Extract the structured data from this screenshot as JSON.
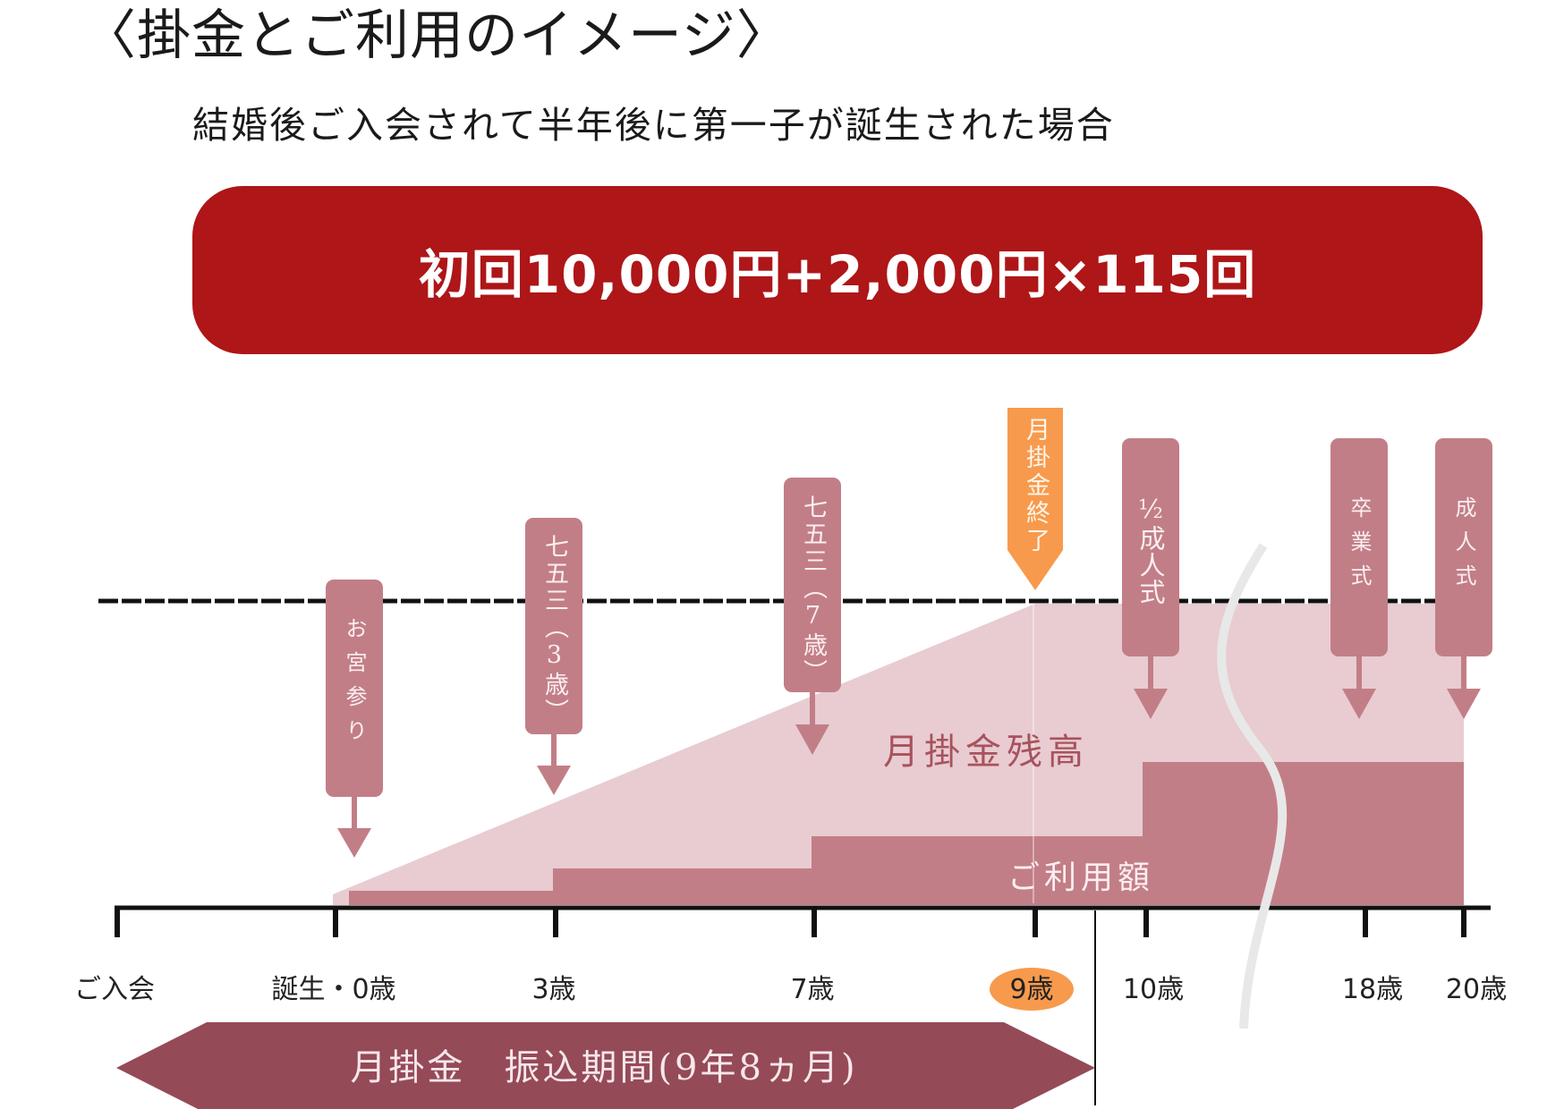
{
  "title": "〈掛金とご利用のイメージ〉",
  "subtitle": "結婚後ご入会されて半年後に第一子が誕生された場合",
  "banner": {
    "text": "初回10,000円+2,000円×115回"
  },
  "colors": {
    "banner": "#ae1618",
    "balance_area": "#e8ccd1",
    "usage_area": "#c27e87",
    "event_tag": "#c27e87",
    "end_tag": "#f79a4d",
    "period_arrow": "#954a58",
    "label_rose": "#a8525e"
  },
  "area_labels": {
    "balance": "月掛金残高",
    "usage": "ご利用額"
  },
  "events": [
    {
      "id": "omiyamairi",
      "label": "お宮参り"
    },
    {
      "id": "shichigosan3",
      "label": "七五三（3歳）"
    },
    {
      "id": "shichigosan7",
      "label": "七五三（7歳）"
    },
    {
      "id": "payment-end",
      "label": "月掛金終了"
    },
    {
      "id": "half-adult",
      "label": "½成人式"
    },
    {
      "id": "graduation",
      "label": "卒業式"
    },
    {
      "id": "adult",
      "label": "成人式"
    }
  ],
  "axis": {
    "ticks": [
      {
        "label": "ご入会"
      },
      {
        "label": "誕生・0歳"
      },
      {
        "label": "3歳"
      },
      {
        "label": "7歳"
      },
      {
        "label": "9歳",
        "highlight": true
      },
      {
        "label": "10歳"
      },
      {
        "label": "18歳"
      },
      {
        "label": "20歳"
      }
    ]
  },
  "period": {
    "label": "月掛金　振込期間(9年8ヵ月)"
  }
}
